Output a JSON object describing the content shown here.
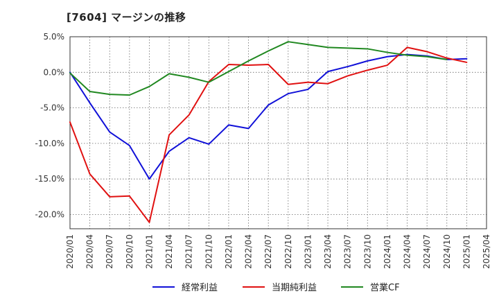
{
  "chart_data": {
    "type": "line",
    "title": "[7604]  マージンの推移",
    "xlabel": "",
    "ylabel": "",
    "ylim": [
      -22,
      5
    ],
    "y_ticks": [
      5,
      0,
      -5,
      -10,
      -15,
      -20
    ],
    "y_tick_labels": [
      "5.0%",
      "0.0%",
      "-5.0%",
      "-10.0%",
      "-15.0%",
      "-20.0%"
    ],
    "grid": true,
    "legend_position": "bottom-center",
    "categories": [
      "2020/01",
      "2020/04",
      "2020/07",
      "2020/10",
      "2021/01",
      "2021/04",
      "2021/07",
      "2021/10",
      "2022/01",
      "2022/04",
      "2022/07",
      "2022/10",
      "2023/01",
      "2023/04",
      "2023/07",
      "2023/10",
      "2024/01",
      "2024/04",
      "2024/07",
      "2024/10",
      "2025/01",
      "2025/04"
    ],
    "series": [
      {
        "name": "経常利益",
        "color": "#1010d8",
        "values": [
          0.0,
          -4.3,
          -8.4,
          -10.3,
          -15.0,
          -11.1,
          -9.2,
          -10.1,
          -7.4,
          -7.9,
          -4.6,
          -3.0,
          -2.4,
          0.1,
          0.8,
          1.6,
          2.2,
          2.5,
          2.3,
          1.8,
          1.9,
          null
        ]
      },
      {
        "name": "当期純利益",
        "color": "#e01010",
        "values": [
          -7.0,
          -14.3,
          -17.5,
          -17.4,
          -21.1,
          -8.8,
          -6.0,
          -1.3,
          1.1,
          1.0,
          1.1,
          -1.7,
          -1.4,
          -1.6,
          -0.5,
          0.3,
          1.0,
          3.5,
          2.9,
          2.0,
          1.4,
          null
        ]
      },
      {
        "name": "営業CF",
        "color": "#208820",
        "values": [
          -0.1,
          -2.7,
          -3.1,
          -3.2,
          -2.0,
          -0.2,
          -0.7,
          -1.4,
          0.1,
          1.6,
          3.0,
          4.3,
          3.9,
          3.5,
          3.4,
          3.3,
          2.8,
          2.4,
          2.2,
          1.8,
          null,
          null
        ]
      }
    ]
  }
}
